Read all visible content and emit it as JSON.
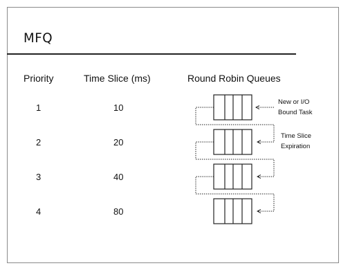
{
  "slide": {
    "title": "MFQ"
  },
  "table": {
    "headers": {
      "priority": "Priority",
      "time_slice": "Time Slice (ms)",
      "queues": "Round Robin Queues"
    },
    "rows": [
      {
        "priority": "1",
        "time_slice": "10"
      },
      {
        "priority": "2",
        "time_slice": "20"
      },
      {
        "priority": "3",
        "time_slice": "40"
      },
      {
        "priority": "4",
        "time_slice": "80"
      }
    ]
  },
  "annotations": {
    "new_task_line1": "New or I/O",
    "new_task_line2": "Bound Task",
    "expiration_line1": "Time Slice",
    "expiration_line2": "Expiration"
  }
}
